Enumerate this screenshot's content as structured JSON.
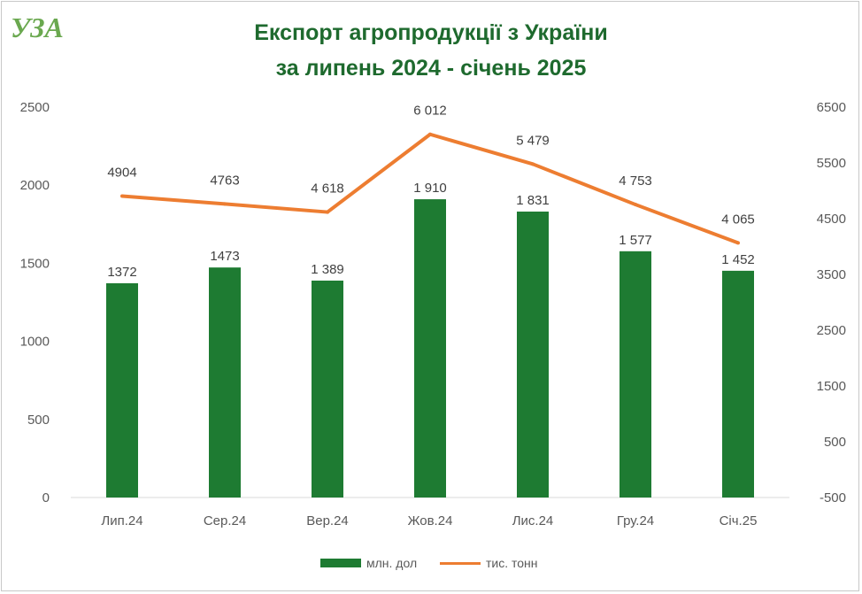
{
  "logo": {
    "text": "УЗА",
    "color": "#6aa84f"
  },
  "title": {
    "line1": "Експорт агропродукції з України",
    "line2": "за липень 2024 - січень 2025",
    "color": "#1e6a2e"
  },
  "chart_data": {
    "type": "bar",
    "categories": [
      "Лип.24",
      "Сер.24",
      "Вер.24",
      "Жов.24",
      "Лис.24",
      "Гру.24",
      "Січ.25"
    ],
    "series": [
      {
        "name": "млн. дол",
        "type": "bar",
        "axis": "left",
        "color": "#1e7b32",
        "values": [
          1372,
          1473,
          1389,
          1910,
          1831,
          1577,
          1452
        ],
        "labels": [
          "1372",
          "1473",
          "1 389",
          "1 910",
          "1 831",
          "1 577",
          "1 452"
        ]
      },
      {
        "name": "тис. тонн",
        "type": "line",
        "axis": "right",
        "color": "#ed7d31",
        "values": [
          4904,
          4763,
          4618,
          6012,
          5479,
          4753,
          4065
        ],
        "labels": [
          "4904",
          "4763",
          "4 618",
          "6 012",
          "5 479",
          "4 753",
          "4 065"
        ]
      }
    ],
    "y_left": {
      "min": 0,
      "max": 2500,
      "ticks": [
        0,
        500,
        1000,
        1500,
        2000,
        2500
      ]
    },
    "y_right": {
      "min": -500,
      "max": 6500,
      "ticks": [
        -500,
        500,
        1500,
        2500,
        3500,
        4500,
        5500,
        6500
      ]
    },
    "grid": false,
    "legend_position": "bottom"
  }
}
